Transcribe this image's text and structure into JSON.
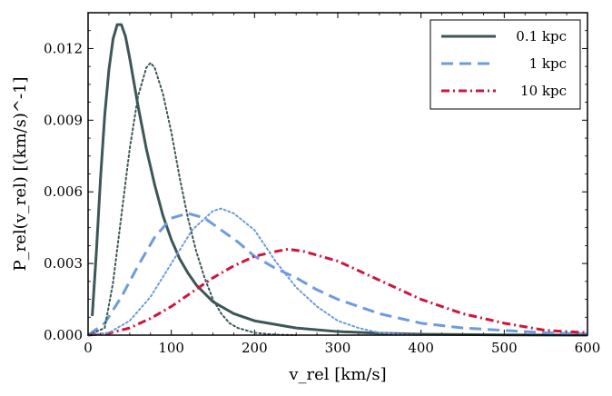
{
  "chart_data": {
    "type": "line",
    "title": "",
    "xlabel": "v_rel [km/s]",
    "ylabel": "P_rel(v_rel) [(km/s)^-1]",
    "xlim": [
      0,
      600
    ],
    "ylim": [
      0,
      0.0135
    ],
    "xticks": [
      "0",
      "100",
      "200",
      "300",
      "400",
      "500",
      "600"
    ],
    "yticks": [
      "0.000",
      "0.003",
      "0.006",
      "0.009",
      "0.012"
    ],
    "legend_position": "top-right",
    "series": [
      {
        "name": "0.1 kpc",
        "style": "solid",
        "color": "#3d5656",
        "in_legend": true,
        "x": [
          5,
          10,
          15,
          20,
          25,
          30,
          35,
          40,
          45,
          50,
          55,
          60,
          70,
          80,
          90,
          100,
          110,
          120,
          130,
          150,
          175,
          200,
          250,
          300,
          350,
          400,
          500,
          600
        ],
        "y": [
          0.0008,
          0.0035,
          0.0066,
          0.0092,
          0.0111,
          0.0124,
          0.013,
          0.013,
          0.0125,
          0.0116,
          0.0106,
          0.0096,
          0.0078,
          0.0063,
          0.005,
          0.004,
          0.0032,
          0.0026,
          0.0021,
          0.0014,
          0.0009,
          0.0006,
          0.0003,
          0.00015,
          8e-05,
          4e-05,
          1e-05,
          0.0
        ]
      },
      {
        "name": "1 kpc",
        "style": "dashed",
        "color": "#6c9be0",
        "in_legend": true,
        "x": [
          0,
          20,
          40,
          60,
          80,
          100,
          120,
          140,
          160,
          180,
          200,
          225,
          250,
          275,
          300,
          325,
          350,
          400,
          450,
          500,
          550,
          600
        ],
        "y": [
          0.0,
          0.0005,
          0.0016,
          0.0029,
          0.0041,
          0.0049,
          0.0051,
          0.0049,
          0.0044,
          0.0039,
          0.0033,
          0.0028,
          0.0024,
          0.0019,
          0.0015,
          0.0012,
          0.0009,
          0.0005,
          0.0003,
          0.0002,
          0.0001,
          5e-05
        ]
      },
      {
        "name": "10 kpc",
        "style": "dashdot",
        "color": "#d0143c",
        "in_legend": true,
        "x": [
          0,
          25,
          50,
          75,
          100,
          125,
          150,
          175,
          200,
          225,
          240,
          260,
          280,
          300,
          325,
          350,
          375,
          400,
          450,
          500,
          550,
          600
        ],
        "y": [
          0.0,
          8e-05,
          0.0003,
          0.0007,
          0.0012,
          0.0018,
          0.0024,
          0.0029,
          0.0033,
          0.0035,
          0.0036,
          0.0035,
          0.0033,
          0.0031,
          0.0027,
          0.0023,
          0.0019,
          0.0015,
          0.0009,
          0.0005,
          0.0002,
          0.0001
        ]
      },
      {
        "name": "0.1 kpc (dotted)",
        "style": "dotted",
        "color": "#3d5656",
        "in_legend": false,
        "x": [
          0,
          20,
          30,
          40,
          50,
          60,
          70,
          75,
          80,
          90,
          100,
          110,
          120,
          130,
          140,
          150,
          160,
          170,
          180,
          200,
          225,
          250
        ],
        "y": [
          0.0,
          0.0003,
          0.0022,
          0.005,
          0.0078,
          0.01,
          0.0112,
          0.0114,
          0.0112,
          0.0101,
          0.0085,
          0.0066,
          0.0049,
          0.0035,
          0.0024,
          0.0015,
          0.0009,
          0.0005,
          0.0003,
          0.0001,
          2e-05,
          0.0
        ]
      },
      {
        "name": "1 kpc (dotted)",
        "style": "dotted",
        "color": "#6c9be0",
        "in_legend": false,
        "x": [
          0,
          25,
          50,
          75,
          100,
          125,
          150,
          160,
          175,
          200,
          225,
          250,
          275,
          300,
          325,
          350,
          375,
          400
        ],
        "y": [
          0.0,
          0.0001,
          0.0006,
          0.0016,
          0.003,
          0.0044,
          0.0052,
          0.0053,
          0.0051,
          0.0044,
          0.0031,
          0.002,
          0.0012,
          0.0006,
          0.0003,
          0.0001,
          4e-05,
          0.0
        ]
      }
    ]
  }
}
